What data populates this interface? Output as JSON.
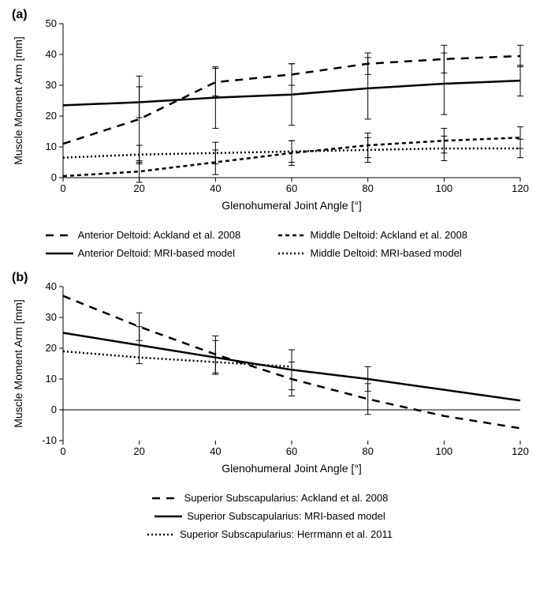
{
  "chart_a": {
    "panel_label": "(a)",
    "type": "line",
    "xlabel": "Glenohumeral Joint Angle [°]",
    "ylabel": "Muscle Moment Arm [mm]",
    "xlim": [
      0,
      120
    ],
    "ylim": [
      0,
      50
    ],
    "xtick_step": 20,
    "ytick_step": 10,
    "label_fontsize": 14,
    "tick_fontsize": 13,
    "background_color": "#ffffff",
    "border_color": "#000000",
    "grid": false,
    "series": [
      {
        "name": "Anterior Deltoid: Ackland et al. 2008",
        "color": "#000000",
        "dash": "10,8",
        "width": 2.5,
        "x": [
          0,
          20,
          40,
          60,
          80,
          100,
          120
        ],
        "y": [
          11,
          19,
          31,
          33.5,
          37,
          38.5,
          39.5
        ],
        "error": [
          null,
          14,
          4.5,
          3.5,
          3.5,
          4.5,
          3.5
        ]
      },
      {
        "name": "Middle Deltoid: Ackland et al. 2008",
        "color": "#000000",
        "dash": "5,4",
        "width": 2.5,
        "x": [
          0,
          20,
          40,
          60,
          80,
          100,
          120
        ],
        "y": [
          0.5,
          2,
          5,
          8,
          10.5,
          12,
          13
        ],
        "error": [
          null,
          3.5,
          4,
          4,
          4,
          4,
          3.5
        ]
      },
      {
        "name": "Anterior Deltoid: MRI-based model",
        "color": "#000000",
        "dash": null,
        "width": 2.5,
        "x": [
          0,
          20,
          40,
          60,
          80,
          100,
          120
        ],
        "y": [
          23.5,
          24.5,
          26,
          27,
          29,
          30.5,
          31.5
        ],
        "error": [
          null,
          5,
          10,
          10,
          10,
          10,
          5
        ]
      },
      {
        "name": "Middle Deltoid: MRI-based model",
        "color": "#000000",
        "dash": "2,3",
        "width": 2.5,
        "x": [
          0,
          20,
          40,
          60,
          80,
          100,
          120
        ],
        "y": [
          6.5,
          7.5,
          8,
          8.5,
          9,
          9.5,
          9.5
        ],
        "error": [
          null,
          3,
          3.5,
          3.5,
          4,
          4,
          3
        ]
      }
    ]
  },
  "chart_b": {
    "panel_label": "(b)",
    "type": "line",
    "xlabel": "Glenohumeral Joint Angle [°]",
    "ylabel": "Muscle Moment Arm [mm]",
    "xlim": [
      0,
      120
    ],
    "ylim": [
      -10,
      40
    ],
    "xtick_step": 20,
    "ytick_step": 10,
    "label_fontsize": 14,
    "tick_fontsize": 13,
    "background_color": "#ffffff",
    "border_color": "#000000",
    "grid": false,
    "series": [
      {
        "name": "Superior Subscapularius: Ackland et al. 2008",
        "color": "#000000",
        "dash": "10,8",
        "width": 2.5,
        "x": [
          0,
          20,
          40,
          60,
          80,
          100,
          120
        ],
        "y": [
          37,
          27,
          18,
          10,
          3.5,
          -2,
          -6
        ],
        "error": [
          null,
          4.5,
          6,
          5.5,
          5,
          null,
          null
        ]
      },
      {
        "name": "Superior Subscapularius: MRI-based model",
        "color": "#000000",
        "dash": null,
        "width": 2.5,
        "x": [
          0,
          20,
          40,
          60,
          80,
          100,
          120
        ],
        "y": [
          25,
          21,
          17,
          13,
          10,
          6.5,
          3
        ],
        "error": [
          null,
          6,
          5.5,
          6.5,
          4,
          null,
          null
        ]
      },
      {
        "name": "Superior Subscapularius: Herrmann et al. 2011",
        "color": "#000000",
        "dash": "2,3",
        "width": 2.5,
        "x": [
          0,
          20,
          40,
          60
        ],
        "y": [
          19,
          17,
          15.5,
          14
        ],
        "error": null
      }
    ]
  }
}
